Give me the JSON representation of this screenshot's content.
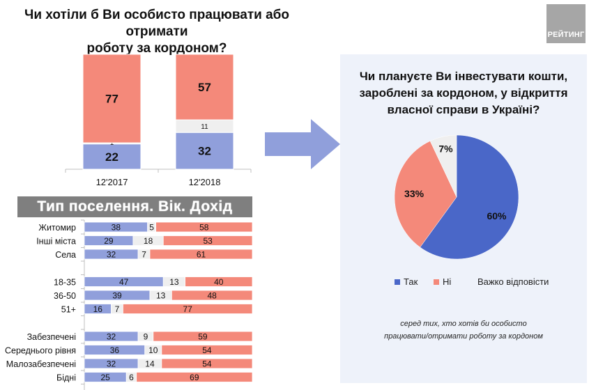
{
  "header": {
    "title_line1": "Чи хотіли б Ви особисто працювати або отримати",
    "title_line2": "роботу за кордоном?",
    "logo_text": "РЕЙТИНГ"
  },
  "colors": {
    "yes_light": "#909fdb",
    "no": "#f4897a",
    "hard": "#efefef",
    "yes_pie": "#4a67c8",
    "banner": "#7f7f7f",
    "panel": "#eef2fa",
    "arrow": "#909fdb"
  },
  "section_banner": "Тип поселення. Вік. Дохід",
  "right_panel": {
    "title_line1": "Чи плануєте Ви інвестувати кошти,",
    "title_line2": "зароблені за кордоном, у відкриття",
    "title_line3": "власної справи в Україні?",
    "note_line1": "серед тих, хто хотів би особисто",
    "note_line2": "працювати/отримати роботу за кордоном"
  },
  "chart_data": [
    {
      "type": "bar",
      "stacked": true,
      "orientation": "vertical",
      "title": "Чи хотіли б Ви особисто працювати або отримати роботу за кордоном?",
      "categories": [
        "12'2017",
        "12'2018"
      ],
      "series": [
        {
          "name": "Так",
          "values": [
            22,
            32
          ]
        },
        {
          "name": "Важко відповісти",
          "values": [
            1,
            11
          ]
        },
        {
          "name": "Ні",
          "values": [
            77,
            57
          ]
        }
      ],
      "ylim": [
        0,
        100
      ]
    },
    {
      "type": "bar",
      "stacked": true,
      "orientation": "horizontal",
      "title": "Тип поселення. Вік. Дохід",
      "groups": [
        {
          "categories": [
            "Житомир",
            "Інші міста",
            "Села"
          ]
        },
        {
          "categories": [
            "18-35",
            "36-50",
            "51+"
          ]
        },
        {
          "categories": [
            "Забезпечені",
            "Середнього рівня",
            "Малозабезпечені",
            "Бідні"
          ]
        }
      ],
      "categories": [
        "Житомир",
        "Інші міста",
        "Села",
        "18-35",
        "36-50",
        "51+",
        "Забезпечені",
        "Середнього рівня",
        "Малозабезпечені",
        "Бідні"
      ],
      "series": [
        {
          "name": "Так",
          "values": [
            38,
            29,
            32,
            47,
            39,
            16,
            32,
            36,
            32,
            25
          ]
        },
        {
          "name": "Важко відповісти",
          "values": [
            5,
            18,
            7,
            13,
            13,
            7,
            9,
            10,
            14,
            6
          ]
        },
        {
          "name": "Ні",
          "values": [
            58,
            53,
            61,
            40,
            48,
            77,
            59,
            54,
            54,
            69
          ]
        }
      ],
      "xlim": [
        0,
        100
      ]
    },
    {
      "type": "pie",
      "title": "Чи плануєте Ви інвестувати кошти, зароблені за кордоном, у відкриття власної справи в Україні?",
      "labels": [
        "Так",
        "Ні",
        "Важко відповісти"
      ],
      "values": [
        60,
        33,
        7
      ],
      "value_labels": [
        "60%",
        "33%",
        "7%"
      ],
      "legend": "bottom"
    }
  ]
}
